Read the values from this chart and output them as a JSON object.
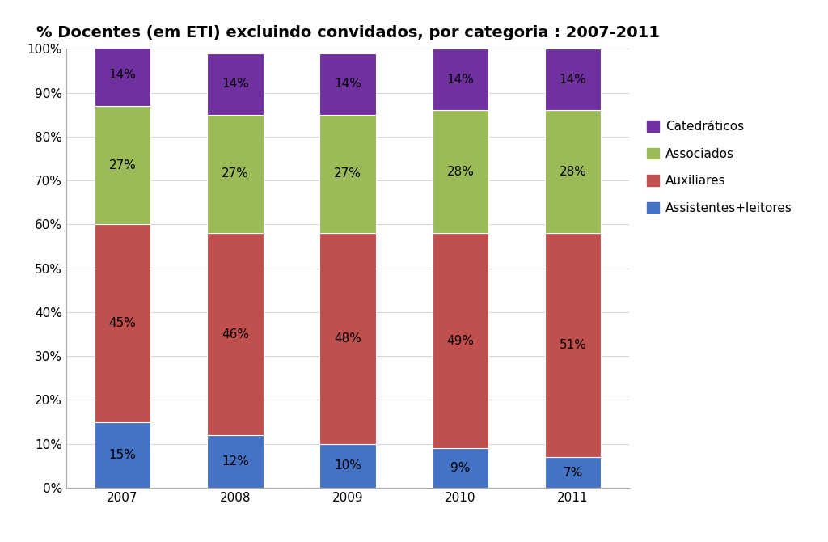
{
  "title": "% Docentes (em ETI) excluindo convidados, por categoria : 2007-2011",
  "years": [
    "2007",
    "2008",
    "2009",
    "2010",
    "2011"
  ],
  "categories": [
    "Assistentes+leitores",
    "Auxiliares",
    "Associados",
    "Catedráticos"
  ],
  "values": {
    "Assistentes+leitores": [
      15,
      12,
      10,
      9,
      7
    ],
    "Auxiliares": [
      45,
      46,
      48,
      49,
      51
    ],
    "Associados": [
      27,
      27,
      27,
      28,
      28
    ],
    "Catedráticos": [
      14,
      14,
      14,
      14,
      14
    ]
  },
  "colors": {
    "Assistentes+leitores": "#4472C4",
    "Auxiliares": "#C0504D",
    "Associados": "#9BBB59",
    "Catedráticos": "#7030A0"
  },
  "labels": {
    "Assistentes+leitores": [
      "15%",
      "12%",
      "10%",
      "9%",
      "7%"
    ],
    "Auxiliares": [
      "45%",
      "46%",
      "48%",
      "49%",
      "51%"
    ],
    "Associados": [
      "27%",
      "27%",
      "27%",
      "28%",
      "28%"
    ],
    "Catedráticos": [
      "14%",
      "14%",
      "14%",
      "14%",
      "14%"
    ]
  },
  "ylim": [
    0,
    100
  ],
  "yticks": [
    0,
    10,
    20,
    30,
    40,
    50,
    60,
    70,
    80,
    90,
    100
  ],
  "ytick_labels": [
    "0%",
    "10%",
    "20%",
    "30%",
    "40%",
    "50%",
    "60%",
    "70%",
    "80%",
    "90%",
    "100%"
  ],
  "background_color": "#FFFFFF",
  "bar_width": 0.5,
  "title_fontsize": 14,
  "tick_fontsize": 11,
  "label_fontsize": 11,
  "legend_fontsize": 11
}
